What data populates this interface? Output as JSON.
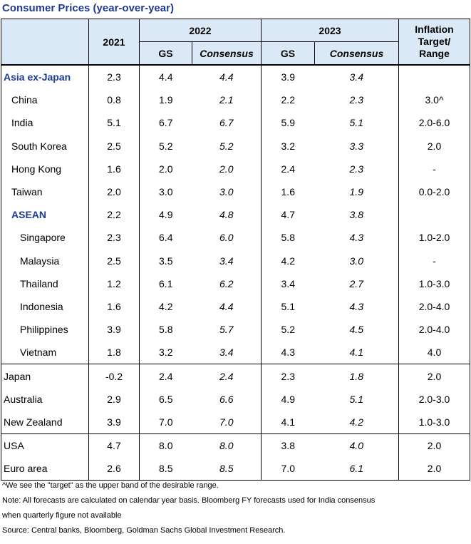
{
  "title": "Consumer Prices (year-over-year)",
  "header": {
    "y2021": "2021",
    "y2022": "2022",
    "y2023": "2023",
    "gs": "GS",
    "consensus": "Consensus",
    "inflation_line1": "Inflation",
    "inflation_line2": "Target/",
    "inflation_line3": "Range"
  },
  "rows": [
    {
      "name": "Asia ex-Japan",
      "y2021": "2.3",
      "gs22": "4.4",
      "con22": "4.4",
      "gs23": "3.9",
      "con23": "3.4",
      "target": ""
    },
    {
      "name": "China",
      "y2021": "0.8",
      "gs22": "1.9",
      "con22": "2.1",
      "gs23": "2.2",
      "con23": "2.3",
      "target": "3.0^"
    },
    {
      "name": "India",
      "y2021": "5.1",
      "gs22": "6.7",
      "con22": "6.7",
      "gs23": "5.9",
      "con23": "5.1",
      "target": "2.0-6.0"
    },
    {
      "name": "South Korea",
      "y2021": "2.5",
      "gs22": "5.2",
      "con22": "5.2",
      "gs23": "3.2",
      "con23": "3.3",
      "target": "2.0"
    },
    {
      "name": "Hong Kong",
      "y2021": "1.6",
      "gs22": "2.0",
      "con22": "2.0",
      "gs23": "2.4",
      "con23": "2.3",
      "target": "-"
    },
    {
      "name": "Taiwan",
      "y2021": "2.0",
      "gs22": "3.0",
      "con22": "3.0",
      "gs23": "1.6",
      "con23": "1.9",
      "target": "0.0-2.0"
    },
    {
      "name": "ASEAN",
      "y2021": "2.2",
      "gs22": "4.9",
      "con22": "4.8",
      "gs23": "4.7",
      "con23": "3.8",
      "target": ""
    },
    {
      "name": "Singapore",
      "y2021": "2.3",
      "gs22": "6.4",
      "con22": "6.0",
      "gs23": "5.8",
      "con23": "4.3",
      "target": "1.0-2.0"
    },
    {
      "name": "Malaysia",
      "y2021": "2.5",
      "gs22": "3.5",
      "con22": "3.4",
      "gs23": "4.2",
      "con23": "3.0",
      "target": "-"
    },
    {
      "name": "Thailand",
      "y2021": "1.2",
      "gs22": "6.1",
      "con22": "6.2",
      "gs23": "3.4",
      "con23": "2.7",
      "target": "1.0-3.0"
    },
    {
      "name": "Indonesia",
      "y2021": "1.6",
      "gs22": "4.2",
      "con22": "4.4",
      "gs23": "5.1",
      "con23": "4.3",
      "target": "2.0-4.0"
    },
    {
      "name": "Philippines",
      "y2021": "3.9",
      "gs22": "5.8",
      "con22": "5.7",
      "gs23": "5.2",
      "con23": "4.5",
      "target": "2.0-4.0"
    },
    {
      "name": "Vietnam",
      "y2021": "1.8",
      "gs22": "3.2",
      "con22": "3.4",
      "gs23": "4.3",
      "con23": "4.1",
      "target": "4.0"
    },
    {
      "name": "Japan",
      "y2021": "-0.2",
      "gs22": "2.4",
      "con22": "2.4",
      "gs23": "2.3",
      "con23": "1.8",
      "target": "2.0"
    },
    {
      "name": "Australia",
      "y2021": "2.9",
      "gs22": "6.5",
      "con22": "6.6",
      "gs23": "4.9",
      "con23": "5.1",
      "target": "2.0-3.0"
    },
    {
      "name": "New Zealand",
      "y2021": "3.9",
      "gs22": "7.0",
      "con22": "7.0",
      "gs23": "4.1",
      "con23": "4.2",
      "target": "1.0-3.0"
    },
    {
      "name": "USA",
      "y2021": "4.7",
      "gs22": "8.0",
      "con22": "8.0",
      "gs23": "3.8",
      "con23": "4.0",
      "target": "2.0"
    },
    {
      "name": "Euro area",
      "y2021": "2.6",
      "gs22": "8.5",
      "con22": "8.5",
      "gs23": "7.0",
      "con23": "6.1",
      "target": "2.0"
    }
  ],
  "notes": {
    "footnote": "^We see the \"target\" as the upper band of the desirable range.",
    "note": "Note: All forecasts are calculated on calendar year basis. Bloomberg FY forecasts used for India consensus",
    "note_cont": "when quarterly figure not available",
    "source": "Source: Central banks, Bloomberg, Goldman Sachs Global Investment Research."
  }
}
